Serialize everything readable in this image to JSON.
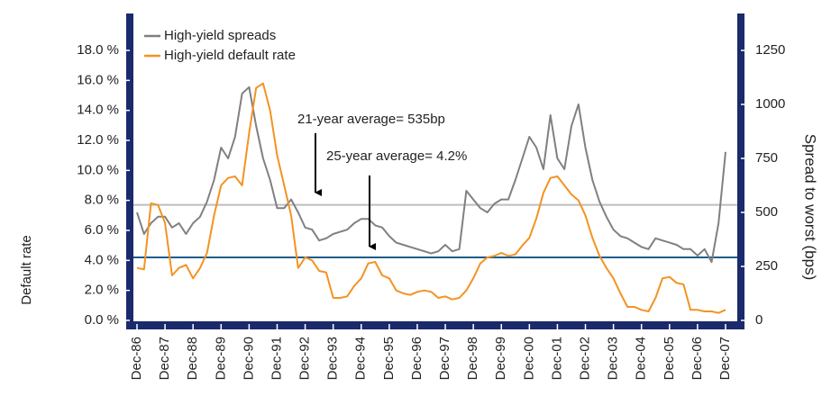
{
  "chart_data": {
    "type": "line",
    "ylabel": "Default rate",
    "y2label": "Spread to worst (bps)",
    "legend": "upper left",
    "ylim": [
      0,
      18
    ],
    "yticks": [
      {
        "value": 0,
        "label": "0.0 %"
      },
      {
        "value": 2,
        "label": "2.0 %"
      },
      {
        "value": 4,
        "label": "4.0 %"
      },
      {
        "value": 6,
        "label": "6.0 %"
      },
      {
        "value": 8,
        "label": "8.0 %"
      },
      {
        "value": 10,
        "label": "10.0 %"
      },
      {
        "value": 12,
        "label": "12.0 %"
      },
      {
        "value": 14,
        "label": "14.0 %"
      },
      {
        "value": 16,
        "label": "16.0 %"
      },
      {
        "value": 18,
        "label": "18.0 %"
      }
    ],
    "y2lim": [
      0,
      1250
    ],
    "y2ticks": [
      0,
      250,
      500,
      750,
      1000,
      1250
    ],
    "categories": [
      "Dec-86",
      null,
      null,
      null,
      "Dec-87",
      null,
      null,
      null,
      "Dec-88",
      null,
      null,
      null,
      "Dec-89",
      null,
      null,
      null,
      "Dec-90",
      null,
      null,
      null,
      "Dec-91",
      null,
      null,
      null,
      "Dec-92",
      null,
      null,
      null,
      "Dec-93",
      null,
      null,
      null,
      "Dec-94",
      null,
      null,
      null,
      "Dec-95",
      null,
      null,
      null,
      "Dec-96",
      null,
      null,
      null,
      "Dec-97",
      null,
      null,
      null,
      "Dec-98",
      null,
      null,
      null,
      "Dec-99",
      null,
      null,
      null,
      "Dec-00",
      null,
      null,
      null,
      "Dec-01",
      null,
      null,
      null,
      "Dec-02",
      null,
      null,
      null,
      "Dec-03",
      null,
      null,
      null,
      "Dec-04",
      null,
      null,
      null,
      "Dec-05",
      null,
      null,
      null,
      "Dec-06",
      null,
      null,
      null,
      "Dec-07"
    ],
    "series": [
      {
        "name": "High-yield spreads",
        "color": "#808080",
        "axis": "y2",
        "values": [
          500,
          400,
          450,
          480,
          480,
          430,
          450,
          400,
          450,
          480,
          550,
          650,
          800,
          750,
          850,
          1050,
          1080,
          900,
          750,
          650,
          520,
          520,
          560,
          500,
          430,
          420,
          370,
          380,
          400,
          410,
          420,
          450,
          470,
          470,
          440,
          430,
          390,
          360,
          350,
          340,
          330,
          320,
          310,
          320,
          350,
          320,
          330,
          600,
          560,
          520,
          500,
          540,
          560,
          560,
          650,
          750,
          850,
          800,
          700,
          950,
          750,
          700,
          900,
          1000,
          800,
          650,
          550,
          480,
          420,
          390,
          380,
          360,
          340,
          330,
          380,
          370,
          360,
          350,
          330,
          330,
          300,
          330,
          270,
          450,
          780
        ]
      },
      {
        "name": "High-yield default rate",
        "color": "#f39323",
        "axis": "y",
        "values": [
          3.5,
          3.4,
          7.8,
          7.7,
          6.5,
          3.0,
          3.5,
          3.7,
          2.8,
          3.5,
          4.5,
          7.0,
          9.0,
          9.5,
          9.6,
          9.0,
          12.5,
          15.5,
          15.8,
          14.0,
          11.0,
          9.0,
          7.0,
          3.5,
          4.2,
          4.0,
          3.3,
          3.2,
          1.5,
          1.5,
          1.6,
          2.3,
          2.8,
          3.8,
          3.9,
          3.0,
          2.8,
          2.0,
          1.8,
          1.7,
          1.9,
          2.0,
          1.9,
          1.5,
          1.6,
          1.4,
          1.5,
          2.0,
          2.8,
          3.8,
          4.2,
          4.3,
          4.5,
          4.3,
          4.4,
          5.0,
          5.5,
          6.8,
          8.5,
          9.5,
          9.6,
          9.0,
          8.4,
          8.0,
          7.0,
          5.5,
          4.3,
          3.5,
          2.8,
          1.8,
          0.9,
          0.9,
          0.7,
          0.6,
          1.5,
          2.8,
          2.9,
          2.5,
          2.4,
          0.7,
          0.7,
          0.6,
          0.6,
          0.5,
          0.7
        ]
      }
    ],
    "reference_lines": [
      {
        "value": 535,
        "axis": "y2",
        "color": "#bdbdbd",
        "text": "21-year average= 535bp"
      },
      {
        "value": 4.2,
        "axis": "y",
        "color": "#1f5c8b",
        "text": "25-year average= 4.2%"
      }
    ]
  }
}
